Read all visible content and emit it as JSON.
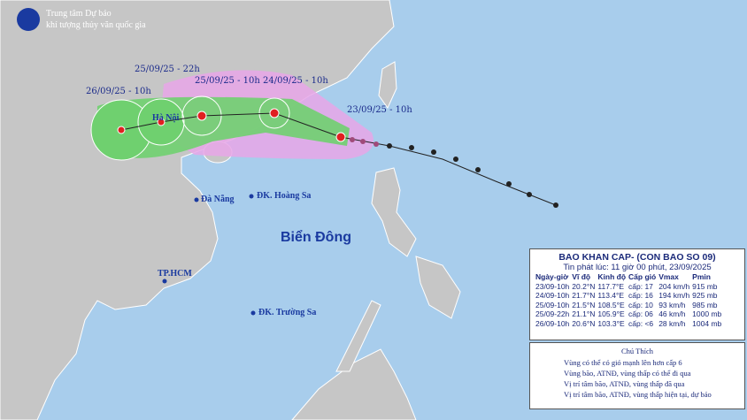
{
  "header": {
    "line1": "Trung tâm Dự báo",
    "line2": "khí tượng thủy văn quốc gia"
  },
  "track_labels": [
    "26/09/25 - 10h",
    "25/09/25 - 22h",
    "25/09/25 - 10h",
    "24/09/25 - 10h",
    "23/09/25 - 10h"
  ],
  "places": [
    "Hà Nội",
    "Đà Nẵng",
    "ĐK. Hoàng Sa",
    "TP.HCM",
    "ĐK. Trường Sa"
  ],
  "sea_label": "Biển Đông",
  "info": {
    "title": "BAO KHAN CAP- (CON BAO SO 09)",
    "subtitle": "Tin phát lúc: 11 giờ 00 phút, 23/09/2025",
    "columns": [
      "Ngày-giờ",
      "Vĩ độ",
      "Kinh độ",
      "Cấp gió",
      "Vmax",
      "Pmin"
    ],
    "rows": [
      [
        "23/09-10h",
        "20.2°N",
        "117.7°E",
        "cấp: 17",
        "204 km/h",
        "915 mb"
      ],
      [
        "24/09-10h",
        "21.7°N",
        "113.4°E",
        "cấp: 16",
        "194 km/h",
        "925 mb"
      ],
      [
        "25/09-10h",
        "21.5°N",
        "108.5°E",
        "cấp: 10",
        "93 km/h",
        "985 mb"
      ],
      [
        "25/09-22h",
        "21.1°N",
        "105.9°E",
        "cấp: 06",
        "46 km/h",
        "1000 mb"
      ],
      [
        "26/09-10h",
        "20.6°N",
        "103.3°E",
        "cấp: <6",
        "28 km/h",
        "1004 mb"
      ]
    ]
  },
  "legend": {
    "title": "Chú Thích",
    "items": [
      "Vùng có thể có gió mạnh lên hơn cấp 6",
      "Vùng bão, ATNĐ, vùng thấp có thể đi qua",
      "Vị trí tâm bão, ATNĐ, vùng thấp đã qua",
      "Vị trí tâm bão, ATNĐ, vùng thấp hiện tại, dự báo"
    ]
  }
}
